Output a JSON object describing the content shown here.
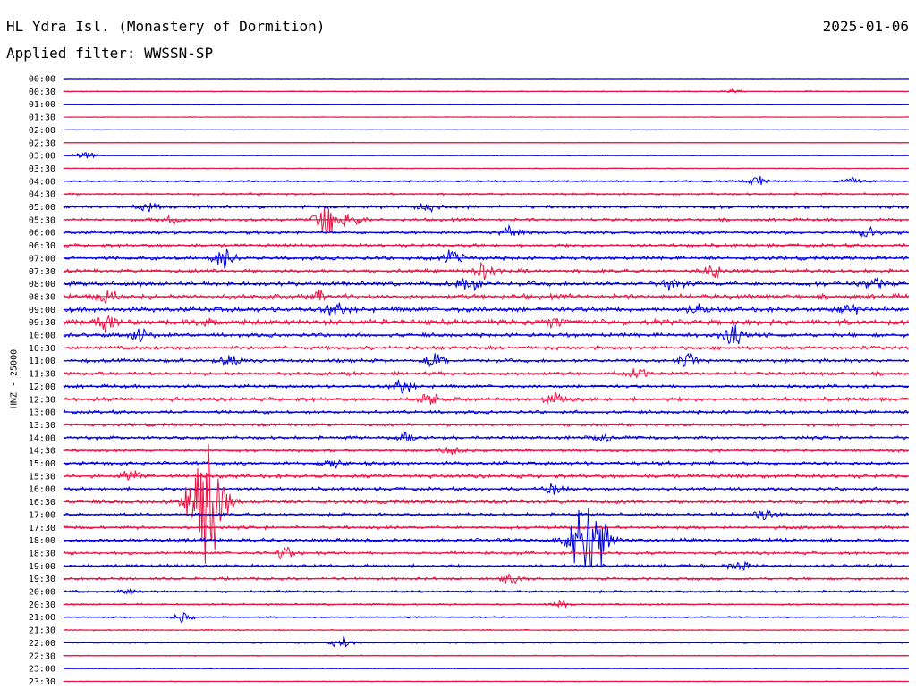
{
  "header": {
    "title": "HL Ydra Isl. (Monastery of Dormition)",
    "date": "2025-01-06",
    "filter": "Applied filter: WWSSN-SP"
  },
  "chart_data": {
    "type": "line",
    "ylabel": "HNZ - 25000",
    "colors": {
      "even": "#0000dd",
      "odd": "#ee1144"
    },
    "tick_labels": [
      "00:00",
      "00:30",
      "01:00",
      "01:30",
      "02:00",
      "02:30",
      "03:00",
      "03:30",
      "04:00",
      "04:30",
      "05:00",
      "05:30",
      "06:00",
      "06:30",
      "07:00",
      "07:30",
      "08:00",
      "08:30",
      "09:00",
      "09:30",
      "10:00",
      "10:30",
      "11:00",
      "11:30",
      "12:00",
      "12:30",
      "13:00",
      "13:30",
      "14:00",
      "14:30",
      "15:00",
      "15:30",
      "16:00",
      "16:30",
      "17:00",
      "17:30",
      "18:00",
      "18:30",
      "19:00",
      "19:30",
      "20:00",
      "20:30",
      "21:00",
      "21:30",
      "22:00",
      "22:30",
      "23:00",
      "23:30"
    ],
    "noise_level": [
      0.3,
      0.6,
      0.4,
      0.4,
      0.3,
      0.4,
      0.5,
      0.6,
      1.2,
      1.4,
      2.2,
      2.0,
      2.2,
      2.2,
      2.4,
      2.6,
      2.8,
      3.4,
      3.4,
      3.6,
      2.6,
      2.4,
      2.4,
      2.4,
      2.2,
      2.6,
      2.2,
      2.0,
      2.2,
      2.0,
      2.4,
      2.6,
      2.2,
      2.4,
      2.2,
      2.2,
      2.4,
      2.0,
      2.0,
      1.8,
      1.6,
      1.2,
      1.0,
      0.8,
      0.8,
      0.6,
      0.5,
      0.5
    ],
    "events": [
      {
        "row": 1,
        "t": 0.79,
        "amp": 3
      },
      {
        "row": 6,
        "t": 0.025,
        "amp": 5
      },
      {
        "row": 8,
        "t": 0.82,
        "amp": 6
      },
      {
        "row": 8,
        "t": 0.93,
        "amp": 5
      },
      {
        "row": 10,
        "t": 0.1,
        "amp": 6
      },
      {
        "row": 10,
        "t": 0.43,
        "amp": 5
      },
      {
        "row": 11,
        "t": 0.13,
        "amp": 5
      },
      {
        "row": 11,
        "t": 0.31,
        "amp": 22
      },
      {
        "row": 11,
        "t": 0.34,
        "amp": 10
      },
      {
        "row": 12,
        "t": 0.53,
        "amp": 8
      },
      {
        "row": 12,
        "t": 0.95,
        "amp": 6
      },
      {
        "row": 14,
        "t": 0.19,
        "amp": 14
      },
      {
        "row": 14,
        "t": 0.46,
        "amp": 10
      },
      {
        "row": 15,
        "t": 0.5,
        "amp": 12
      },
      {
        "row": 15,
        "t": 0.77,
        "amp": 8
      },
      {
        "row": 16,
        "t": 0.48,
        "amp": 10
      },
      {
        "row": 16,
        "t": 0.72,
        "amp": 9
      },
      {
        "row": 16,
        "t": 0.96,
        "amp": 8
      },
      {
        "row": 17,
        "t": 0.05,
        "amp": 9
      },
      {
        "row": 17,
        "t": 0.3,
        "amp": 6
      },
      {
        "row": 18,
        "t": 0.32,
        "amp": 9
      },
      {
        "row": 18,
        "t": 0.75,
        "amp": 7
      },
      {
        "row": 18,
        "t": 0.93,
        "amp": 7
      },
      {
        "row": 19,
        "t": 0.05,
        "amp": 10
      },
      {
        "row": 19,
        "t": 0.17,
        "amp": 8
      },
      {
        "row": 19,
        "t": 0.58,
        "amp": 7
      },
      {
        "row": 20,
        "t": 0.09,
        "amp": 8
      },
      {
        "row": 20,
        "t": 0.79,
        "amp": 14
      },
      {
        "row": 22,
        "t": 0.2,
        "amp": 8
      },
      {
        "row": 22,
        "t": 0.44,
        "amp": 9
      },
      {
        "row": 22,
        "t": 0.74,
        "amp": 8
      },
      {
        "row": 23,
        "t": 0.68,
        "amp": 6
      },
      {
        "row": 24,
        "t": 0.4,
        "amp": 9
      },
      {
        "row": 25,
        "t": 0.43,
        "amp": 9
      },
      {
        "row": 25,
        "t": 0.58,
        "amp": 7
      },
      {
        "row": 28,
        "t": 0.41,
        "amp": 6
      },
      {
        "row": 28,
        "t": 0.64,
        "amp": 6
      },
      {
        "row": 29,
        "t": 0.46,
        "amp": 6
      },
      {
        "row": 30,
        "t": 0.32,
        "amp": 6
      },
      {
        "row": 31,
        "t": 0.08,
        "amp": 8
      },
      {
        "row": 32,
        "t": 0.58,
        "amp": 6
      },
      {
        "row": 33,
        "t": 0.17,
        "amp": 80
      },
      {
        "row": 34,
        "t": 0.83,
        "amp": 8
      },
      {
        "row": 36,
        "t": 0.62,
        "amp": 70
      },
      {
        "row": 37,
        "t": 0.26,
        "amp": 9
      },
      {
        "row": 38,
        "t": 0.8,
        "amp": 6
      },
      {
        "row": 39,
        "t": 0.53,
        "amp": 6
      },
      {
        "row": 40,
        "t": 0.08,
        "amp": 5
      },
      {
        "row": 41,
        "t": 0.59,
        "amp": 4
      },
      {
        "row": 42,
        "t": 0.14,
        "amp": 6
      },
      {
        "row": 44,
        "t": 0.33,
        "amp": 8
      }
    ]
  }
}
